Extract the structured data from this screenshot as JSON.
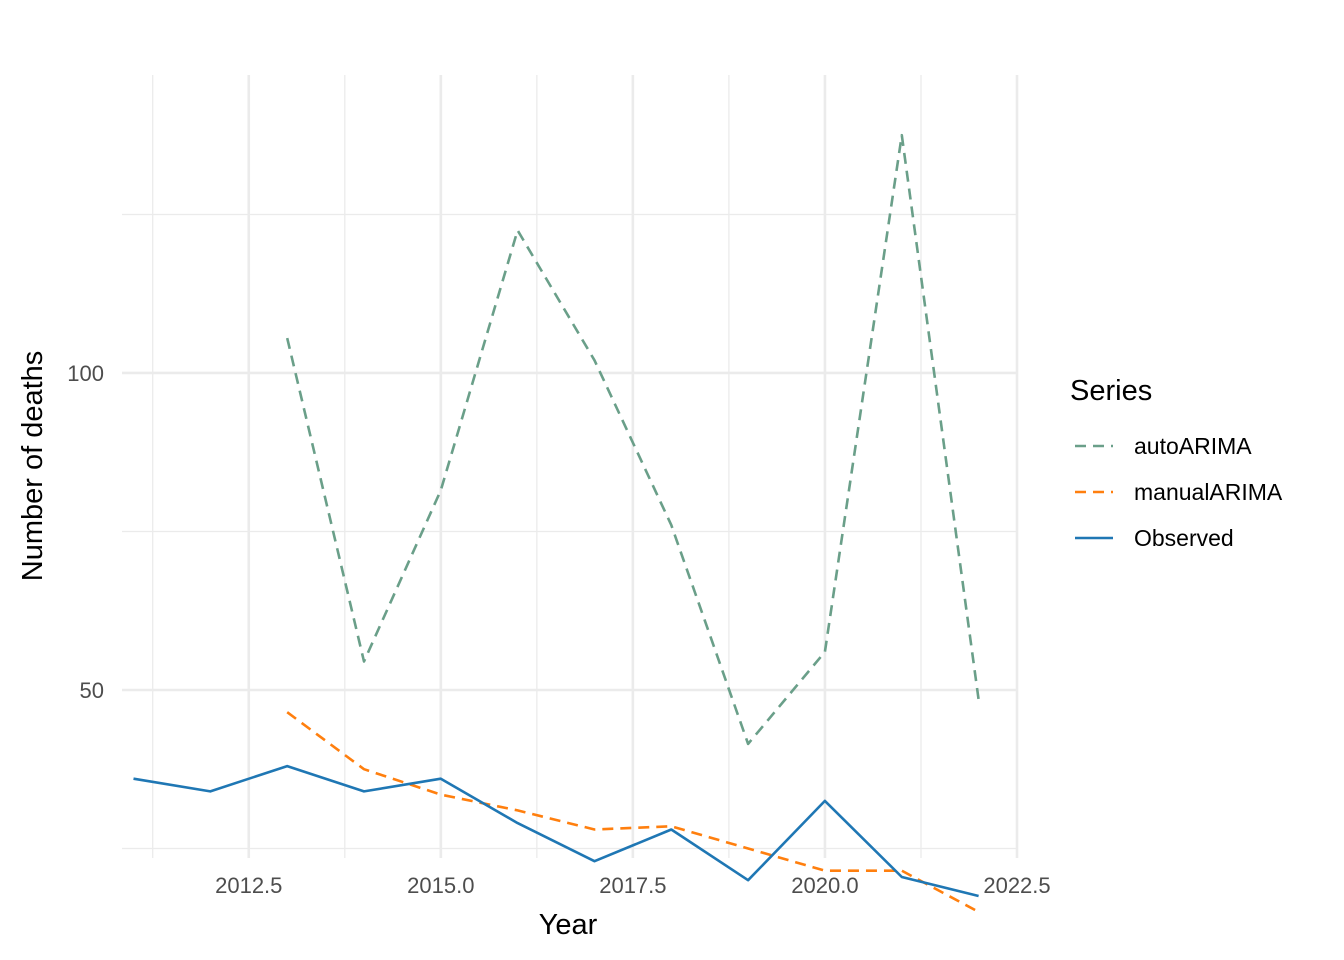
{
  "chart_data": {
    "type": "line",
    "title": "",
    "xlabel": "Year",
    "ylabel": "Number of deaths",
    "xlim": [
      2010.85,
      2022.5
    ],
    "ylim": [
      23.5,
      147
    ],
    "x_ticks": [
      "2012.5",
      "2015.0",
      "2017.5",
      "2020.0",
      "2022.5"
    ],
    "x_tick_values": [
      2012.5,
      2015.0,
      2017.5,
      2020.0,
      2022.5
    ],
    "x_minor_values": [
      2011.25,
      2013.75,
      2016.25,
      2018.75,
      2021.25
    ],
    "y_ticks": [
      "50",
      "100"
    ],
    "y_tick_values": [
      50,
      100
    ],
    "y_minor_values": [
      25,
      75,
      125
    ],
    "grid": true,
    "legend": {
      "title": "Series",
      "position": "right",
      "entries": [
        "autoARIMA",
        "manualARIMA",
        "Observed"
      ]
    },
    "series": [
      {
        "name": "autoARIMA",
        "color": "#6a9f89",
        "dash": "dashed",
        "x": [
          2013,
          2014,
          2015,
          2016,
          2017,
          2018,
          2019,
          2020,
          2021,
          2022
        ],
        "y": [
          105.5,
          54.5,
          81.5,
          122.5,
          102,
          76,
          41.5,
          56,
          137.5,
          48.5
        ]
      },
      {
        "name": "manualARIMA",
        "color": "#ff7f0e",
        "dash": "dashed",
        "x": [
          2013,
          2014,
          2015,
          2016,
          2017,
          2018,
          2019,
          2020,
          2021,
          2022
        ],
        "y": [
          46.5,
          37.5,
          33.5,
          31,
          28,
          28.5,
          25,
          21.5,
          21.5,
          15
        ]
      },
      {
        "name": "Observed",
        "color": "#1f77b4",
        "dash": "solid",
        "x": [
          2011,
          2012,
          2013,
          2014,
          2015,
          2016,
          2017,
          2018,
          2019,
          2020,
          2021,
          2022
        ],
        "y": [
          36,
          34,
          38,
          34,
          36,
          29,
          23,
          28,
          20,
          32.5,
          20.5,
          17.5
        ]
      }
    ]
  }
}
